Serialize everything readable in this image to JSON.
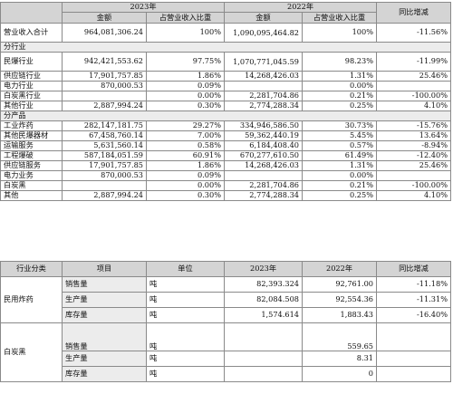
{
  "revenue_table": {
    "year_2023": "2023年",
    "year_2022": "2022年",
    "yoy": "同比增减",
    "amount": "金额",
    "share": "占营业收入比重",
    "total": {
      "label": "营业收入合计",
      "a23": "964,081,306.24",
      "p23": "100%",
      "a22": "1,090,095,464.82",
      "p22": "100%",
      "yoy": "-11.56%"
    },
    "industry_title": "分行业",
    "industry_rows": [
      {
        "label": "民爆行业",
        "a23": "942,421,553.62",
        "p23": "97.75%",
        "a22": "1,070,771,045.59",
        "p22": "98.23%",
        "yoy": "-11.99%"
      },
      {
        "label": "供应链行业",
        "a23": "17,901,757.85",
        "p23": "1.86%",
        "a22": "14,268,426.03",
        "p22": "1.31%",
        "yoy": "25.46%"
      },
      {
        "label": "电力行业",
        "a23": "870,000.53",
        "p23": "0.09%",
        "a22": "",
        "p22": "0.00%",
        "yoy": ""
      },
      {
        "label": "白炭黑行业",
        "a23": "",
        "p23": "0.00%",
        "a22": "2,281,704.86",
        "p22": "0.21%",
        "yoy": "-100.00%"
      },
      {
        "label": "其他行业",
        "a23": "2,887,994.24",
        "p23": "0.30%",
        "a22": "2,774,288.34",
        "p22": "0.25%",
        "yoy": "4.10%"
      }
    ],
    "product_title": "分产品",
    "product_rows": [
      {
        "label": "工业炸药",
        "a23": "282,147,181.75",
        "p23": "29.27%",
        "a22": "334,946,586.50",
        "p22": "30.73%",
        "yoy": "-15.76%"
      },
      {
        "label": "其他民爆器材",
        "a23": "67,458,760.14",
        "p23": "7.00%",
        "a22": "59,362,440.19",
        "p22": "5.45%",
        "yoy": "13.64%"
      },
      {
        "label": "运输服务",
        "a23": "5,631,560.14",
        "p23": "0.58%",
        "a22": "6,184,408.40",
        "p22": "0.57%",
        "yoy": "-8.94%"
      },
      {
        "label": "工程爆破",
        "a23": "587,184,051.59",
        "p23": "60.91%",
        "a22": "670,277,610.50",
        "p22": "61.49%",
        "yoy": "-12.40%"
      },
      {
        "label": "供应链服务",
        "a23": "17,901,757.85",
        "p23": "1.86%",
        "a22": "14,268,426.03",
        "p22": "1.31%",
        "yoy": "25.46%"
      },
      {
        "label": "电力业务",
        "a23": "870,000.53",
        "p23": "0.09%",
        "a22": "",
        "p22": "0.00%",
        "yoy": ""
      },
      {
        "label": "白炭黑",
        "a23": "",
        "p23": "0.00%",
        "a22": "2,281,704.86",
        "p22": "0.21%",
        "yoy": "-100.00%"
      },
      {
        "label": "其他",
        "a23": "2,887,994.24",
        "p23": "0.30%",
        "a22": "2,774,288.34",
        "p22": "0.25%",
        "yoy": "4.10%"
      }
    ]
  },
  "volume_table": {
    "headers": {
      "category": "行业分类",
      "item": "项目",
      "unit": "单位",
      "y2023": "2023年",
      "y2022": "2022年",
      "yoy": "同比增减"
    },
    "groups": [
      {
        "category": "民用炸药",
        "rows": [
          {
            "item": "销售量",
            "unit": "吨",
            "v23": "82,393.324",
            "v22": "92,761.00",
            "yoy": "-11.18%"
          },
          {
            "item": "生产量",
            "unit": "吨",
            "v23": "82,084.508",
            "v22": "92,554.36",
            "yoy": "-11.31%"
          },
          {
            "item": "库存量",
            "unit": "吨",
            "v23": "1,574.614",
            "v22": "1,883.43",
            "yoy": "-16.40%"
          }
        ]
      },
      {
        "category": "白炭黑",
        "rows": [
          {
            "item": "销售量",
            "unit": "吨",
            "v23": "",
            "v22": "559.65",
            "yoy": ""
          },
          {
            "item": "生产量",
            "unit": "吨",
            "v23": "",
            "v22": "8.31",
            "yoy": ""
          },
          {
            "item": "库存量",
            "unit": "吨",
            "v23": "",
            "v22": "0",
            "yoy": ""
          }
        ]
      }
    ]
  }
}
